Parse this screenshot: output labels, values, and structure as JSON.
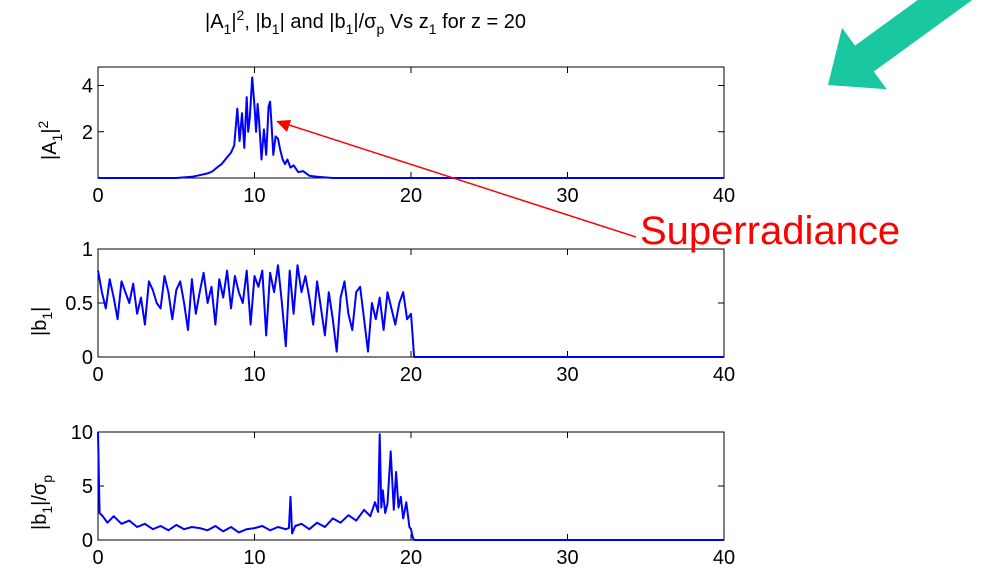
{
  "figure": {
    "title_parts": [
      "|A",
      "1",
      "|",
      "2",
      ", |b",
      "1",
      "| and |b",
      "1",
      "|/σ",
      "p",
      " Vs z",
      "1",
      " for z = 20"
    ],
    "annotation": "Superradiance",
    "colors": {
      "line": "#0000ff",
      "annotation": "#ff0000",
      "arrow_big": "#19c8a0",
      "axes": "#000000"
    }
  },
  "chart_data": [
    {
      "type": "line",
      "ylabel_parts": [
        "|A",
        "1",
        "|",
        "2"
      ],
      "xlim": [
        0,
        40
      ],
      "ylim": [
        0,
        4.8
      ],
      "xticks": [
        0,
        10,
        20,
        30,
        40
      ],
      "yticks": [
        2,
        4
      ],
      "series": [
        {
          "x": [
            0,
            5.0,
            6.0,
            6.5,
            7.0,
            7.3,
            7.6,
            7.9,
            8.2,
            8.5,
            8.7,
            8.9,
            9.05,
            9.2,
            9.35,
            9.5,
            9.6,
            9.7,
            9.85,
            10.0,
            10.1,
            10.2,
            10.3,
            10.45,
            10.6,
            10.75,
            10.9,
            11.0,
            11.1,
            11.2,
            11.35,
            11.5,
            11.65,
            11.8,
            11.95,
            12.1,
            12.3,
            12.5,
            12.8,
            13.1,
            13.5,
            14.0,
            15.0,
            20.0,
            40.0
          ],
          "y": [
            0,
            0,
            0.05,
            0.12,
            0.2,
            0.28,
            0.45,
            0.6,
            0.85,
            1.1,
            1.4,
            3.0,
            1.6,
            2.8,
            1.3,
            3.5,
            2.0,
            2.6,
            4.35,
            3.1,
            2.0,
            3.2,
            2.4,
            0.8,
            2.1,
            1.0,
            3.1,
            3.3,
            2.2,
            1.0,
            1.8,
            1.7,
            1.2,
            0.8,
            0.6,
            0.8,
            0.45,
            0.55,
            0.25,
            0.3,
            0.1,
            0.05,
            0,
            0,
            0
          ]
        }
      ]
    },
    {
      "type": "line",
      "ylabel_parts": [
        "|b",
        "1",
        "|"
      ],
      "xlim": [
        0,
        40
      ],
      "ylim": [
        0,
        1
      ],
      "xticks": [
        0,
        10,
        20,
        30,
        40
      ],
      "yticks": [
        0,
        0.5,
        1
      ],
      "series": [
        {
          "x": [
            0,
            0.25,
            0.5,
            0.75,
            1.0,
            1.25,
            1.5,
            1.75,
            2.0,
            2.25,
            2.5,
            2.75,
            3.0,
            3.25,
            3.5,
            3.75,
            4.0,
            4.25,
            4.5,
            4.75,
            5.0,
            5.25,
            5.5,
            5.75,
            6.0,
            6.25,
            6.5,
            6.75,
            7.0,
            7.25,
            7.5,
            7.75,
            8.0,
            8.25,
            8.5,
            8.75,
            9.0,
            9.25,
            9.5,
            9.75,
            10.0,
            10.25,
            10.5,
            10.75,
            11.0,
            11.25,
            11.5,
            11.75,
            12.0,
            12.25,
            12.5,
            12.75,
            13.0,
            13.25,
            13.5,
            13.75,
            14.0,
            14.25,
            14.5,
            14.75,
            15.0,
            15.25,
            15.5,
            15.75,
            16.0,
            16.25,
            16.5,
            16.75,
            17.0,
            17.25,
            17.5,
            17.75,
            18.0,
            18.25,
            18.5,
            18.75,
            19.0,
            19.25,
            19.5,
            19.75,
            20.0,
            20.1,
            20.2,
            25,
            30,
            35,
            40
          ],
          "y": [
            0.8,
            0.6,
            0.45,
            0.72,
            0.55,
            0.35,
            0.7,
            0.6,
            0.5,
            0.68,
            0.4,
            0.55,
            0.3,
            0.7,
            0.62,
            0.5,
            0.45,
            0.75,
            0.6,
            0.35,
            0.62,
            0.7,
            0.5,
            0.25,
            0.72,
            0.4,
            0.6,
            0.78,
            0.5,
            0.65,
            0.3,
            0.72,
            0.55,
            0.8,
            0.45,
            0.75,
            0.6,
            0.5,
            0.8,
            0.3,
            0.75,
            0.65,
            0.8,
            0.2,
            0.78,
            0.6,
            0.85,
            0.5,
            0.1,
            0.8,
            0.4,
            0.85,
            0.6,
            0.75,
            0.55,
            0.3,
            0.7,
            0.45,
            0.2,
            0.6,
            0.35,
            0.05,
            0.55,
            0.7,
            0.4,
            0.25,
            0.6,
            0.65,
            0.35,
            0.05,
            0.5,
            0.35,
            0.55,
            0.25,
            0.6,
            0.45,
            0.3,
            0.5,
            0.6,
            0.35,
            0.4,
            0.2,
            0.0,
            0,
            0,
            0,
            0
          ]
        }
      ]
    },
    {
      "type": "line",
      "ylabel_parts": [
        "|b",
        "1",
        "|/σ",
        "p"
      ],
      "xlim": [
        0,
        40
      ],
      "ylim": [
        0,
        10
      ],
      "xticks": [
        0,
        10,
        20,
        30,
        40
      ],
      "yticks": [
        0,
        5,
        10
      ],
      "series": [
        {
          "x": [
            0,
            0.1,
            0.3,
            0.6,
            1.0,
            1.5,
            2.0,
            2.5,
            3.0,
            3.5,
            4.0,
            4.5,
            5.0,
            5.5,
            6.0,
            6.5,
            7.0,
            7.5,
            8.0,
            8.5,
            9.0,
            9.5,
            10.0,
            10.5,
            11.0,
            11.5,
            12.0,
            12.2,
            12.3,
            12.4,
            12.6,
            13.0,
            13.5,
            14.0,
            14.5,
            15.0,
            15.5,
            16.0,
            16.5,
            17.0,
            17.4,
            17.7,
            17.9,
            18.0,
            18.1,
            18.2,
            18.35,
            18.5,
            18.7,
            18.9,
            19.05,
            19.2,
            19.35,
            19.5,
            19.7,
            19.9,
            20.0,
            20.1,
            20.2,
            25,
            30,
            35,
            40
          ],
          "y": [
            10,
            2.5,
            2.2,
            1.6,
            2.2,
            1.5,
            1.8,
            1.2,
            1.5,
            1.0,
            1.3,
            0.9,
            1.4,
            1.0,
            1.2,
            1.1,
            0.9,
            1.3,
            0.8,
            1.2,
            0.7,
            1.0,
            1.1,
            1.3,
            0.9,
            1.2,
            1.0,
            1.1,
            4.0,
            0.6,
            1.3,
            1.5,
            1.0,
            1.6,
            1.2,
            2.0,
            1.6,
            2.3,
            1.8,
            2.8,
            2.2,
            3.5,
            2.6,
            9.8,
            3.0,
            4.6,
            2.5,
            3.4,
            8.2,
            2.8,
            6.3,
            3.0,
            4.0,
            2.0,
            3.5,
            1.2,
            1.0,
            0.3,
            0,
            0,
            0,
            0,
            0
          ]
        }
      ]
    }
  ]
}
